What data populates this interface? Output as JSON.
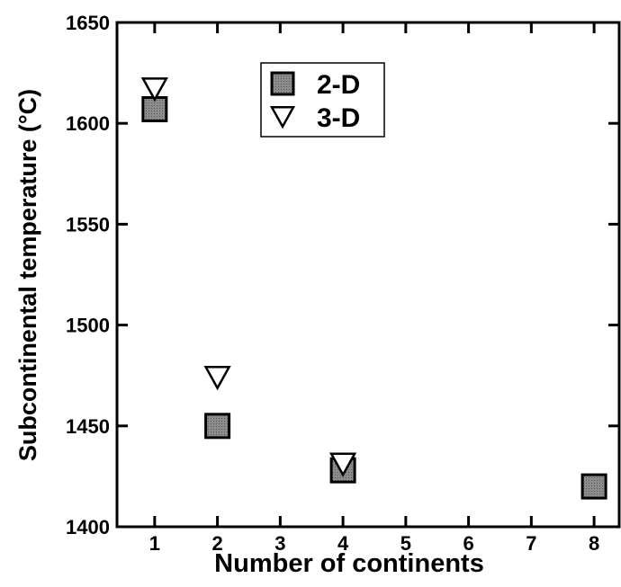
{
  "chart_data": {
    "type": "scatter",
    "xlabel": "Number of continents",
    "ylabel": "Subcontinental temperature (°C)",
    "xlim": [
      0.4,
      8.4
    ],
    "xticks": [
      1,
      2,
      3,
      4,
      5,
      6,
      7,
      8
    ],
    "ylim": [
      1400,
      1650
    ],
    "yticks": [
      1400,
      1450,
      1500,
      1550,
      1600,
      1650
    ],
    "series": [
      {
        "name": "2-D",
        "marker": "square",
        "color": "#8c8c8c",
        "x": [
          1,
          2,
          4,
          8
        ],
        "values": [
          1607,
          1450,
          1428,
          1420
        ]
      },
      {
        "name": "3-D",
        "marker": "triangle-down",
        "color": "#ffffff",
        "x": [
          1,
          2,
          4
        ],
        "values": [
          1617,
          1474,
          1431
        ]
      }
    ]
  }
}
